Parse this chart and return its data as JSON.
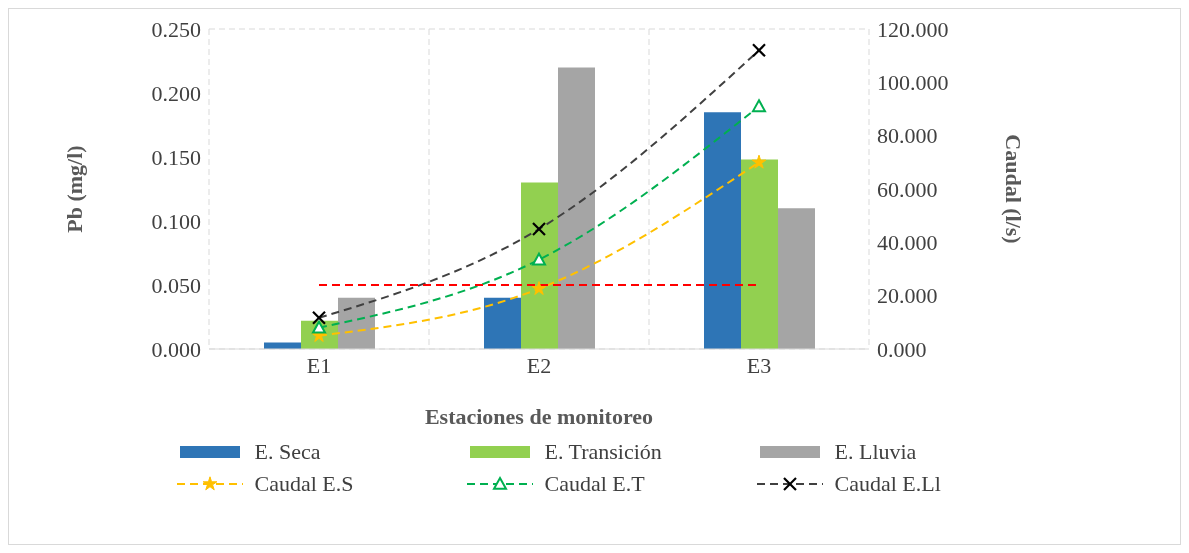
{
  "chart_data": {
    "type": "bar",
    "xlabel": "Estaciones de monitoreo",
    "ylabel": "Pb (mg/l)",
    "y2label": "Caudal (l/s)",
    "categories": [
      "E1",
      "E2",
      "E3"
    ],
    "series": [
      {
        "name": "E. Seca",
        "color": "#2e75b6",
        "values": [
          0.005,
          0.04,
          0.185
        ]
      },
      {
        "name": "E. Transición",
        "color": "#92d050",
        "values": [
          0.022,
          0.13,
          0.148
        ]
      },
      {
        "name": "E. Lluvia",
        "color": "#a5a5a5",
        "values": [
          0.04,
          0.22,
          0.11
        ]
      },
      {
        "name": "Caudal E.S",
        "type": "line",
        "axis": "y2",
        "color": "#ffc000",
        "marker": "star",
        "line_style": "dashed",
        "values": [
          5,
          22.6,
          70
        ]
      },
      {
        "name": "Caudal E.T",
        "type": "line",
        "axis": "y2",
        "color": "#00b050",
        "marker": "triangle",
        "line_style": "dashed",
        "values": [
          8,
          33.5,
          91
        ]
      },
      {
        "name": "Caudal E.Ll",
        "type": "line",
        "axis": "y2",
        "color": "#404040",
        "marker": "cross",
        "line_style": "dashed",
        "values": [
          11.7,
          45,
          112
        ]
      }
    ],
    "ylim": [
      0,
      0.25
    ],
    "yticks": [
      {
        "value": 0,
        "label": "0.000"
      },
      {
        "value": 0.05,
        "label": "0.050"
      },
      {
        "value": 0.1,
        "label": "0.100"
      },
      {
        "value": 0.15,
        "label": "0.150"
      },
      {
        "value": 0.2,
        "label": "0.200"
      },
      {
        "value": 0.25,
        "label": "0.250"
      }
    ],
    "y2lim": [
      0,
      120
    ],
    "y2ticks": [
      {
        "value": 0,
        "label": "0.000"
      },
      {
        "value": 20,
        "label": "20.000"
      },
      {
        "value": 40,
        "label": "40.000"
      },
      {
        "value": 60,
        "label": "60.000"
      },
      {
        "value": 80,
        "label": "80.000"
      },
      {
        "value": 100,
        "label": "100.000"
      },
      {
        "value": 120,
        "label": "120.000"
      }
    ],
    "ref_lines": [
      {
        "axis": "y",
        "value": 0.05,
        "color": "#ff0000",
        "line_style": "dashed"
      }
    ],
    "grid": true,
    "legend": "bottom"
  }
}
